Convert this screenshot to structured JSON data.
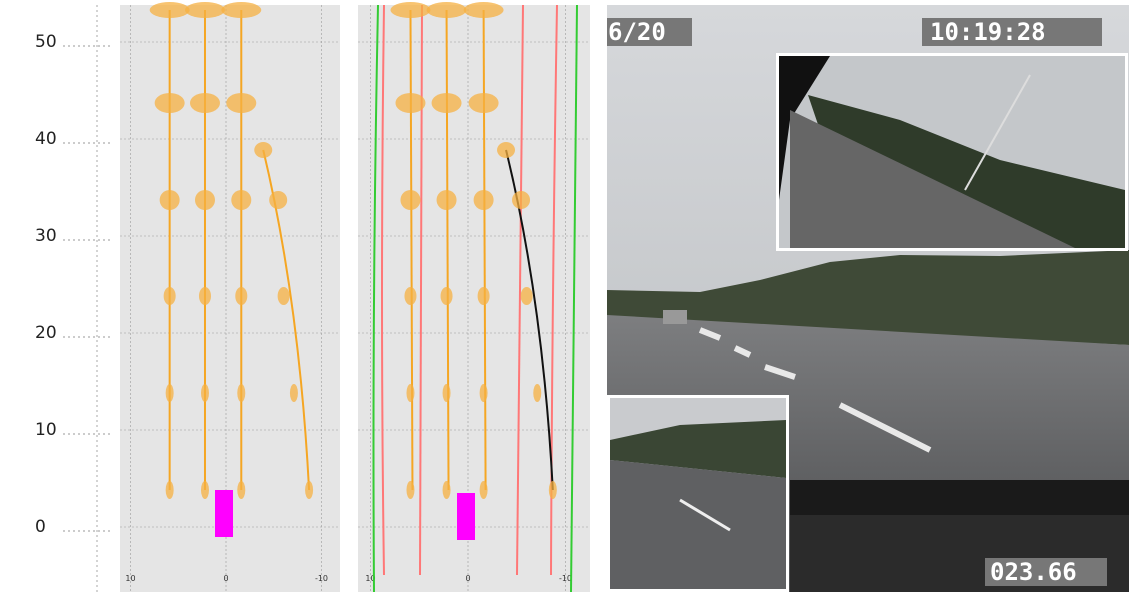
{
  "left_axis": {
    "ticks": [
      50,
      40,
      30,
      20,
      10,
      0
    ]
  },
  "panels": [
    {
      "x_ticks": [
        10,
        0,
        -10
      ]
    },
    {
      "x_ticks": [
        10,
        0,
        -10
      ]
    }
  ],
  "video": {
    "frame_label": "6/20",
    "clock": "10:19:28",
    "counter": "023.66"
  }
}
